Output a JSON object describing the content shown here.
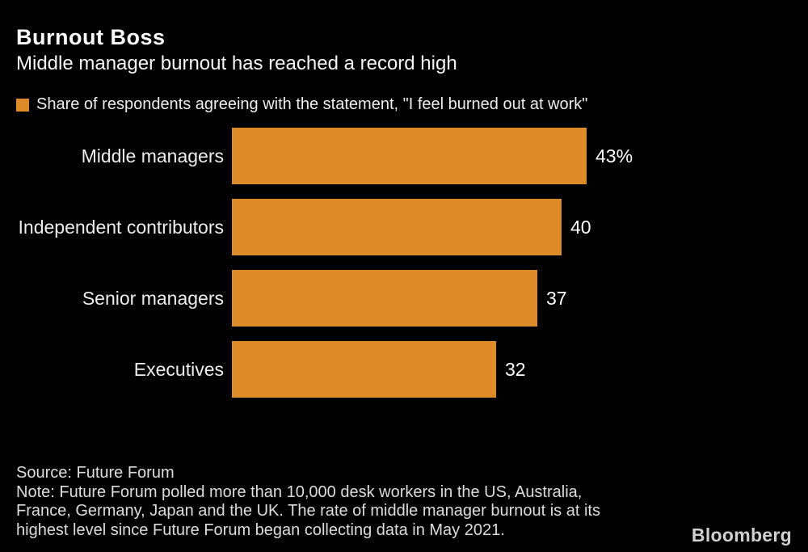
{
  "header": {
    "title": "Burnout Boss",
    "subtitle": "Middle manager burnout has reached a record high"
  },
  "legend": {
    "label": "Share of respondents agreeing with the statement, \"I feel burned out at work\""
  },
  "chart_data": {
    "type": "bar",
    "orientation": "horizontal",
    "title": "Burnout Boss",
    "subtitle": "Middle manager burnout has reached a record high",
    "series_name": "Share of respondents agreeing with the statement, \"I feel burned out at work\"",
    "categories": [
      "Middle managers",
      "Independent contributors",
      "Senior managers",
      "Executives"
    ],
    "values": [
      43,
      40,
      37,
      32
    ],
    "value_labels": [
      "43%",
      "40",
      "37",
      "32"
    ],
    "xlim": [
      0,
      43
    ],
    "unit": "percent",
    "grid": false,
    "legend_position": "top",
    "bar_color": "#DD8A28"
  },
  "footer": {
    "source": "Source: Future Forum",
    "note_lines": [
      "Note: Future Forum polled more than 10,000 desk workers in the US, Australia,",
      "France, Germany, Japan and the UK. The rate of middle manager burnout is at its",
      "highest level since Future Forum began collecting data in May 2021."
    ],
    "note": "Note: Future Forum polled more than 10,000 desk workers in the US, Australia, France, Germany, Japan and the UK. The rate of middle manager burnout is at its highest level since Future Forum began collecting data in May 2021.",
    "brand": "Bloomberg"
  },
  "colors": {
    "background": "#000000",
    "bar": "#DD8A28",
    "title_text": "#FFFFFF",
    "body_text": "#EDEDED",
    "footnote_text": "#DCDCDC"
  }
}
